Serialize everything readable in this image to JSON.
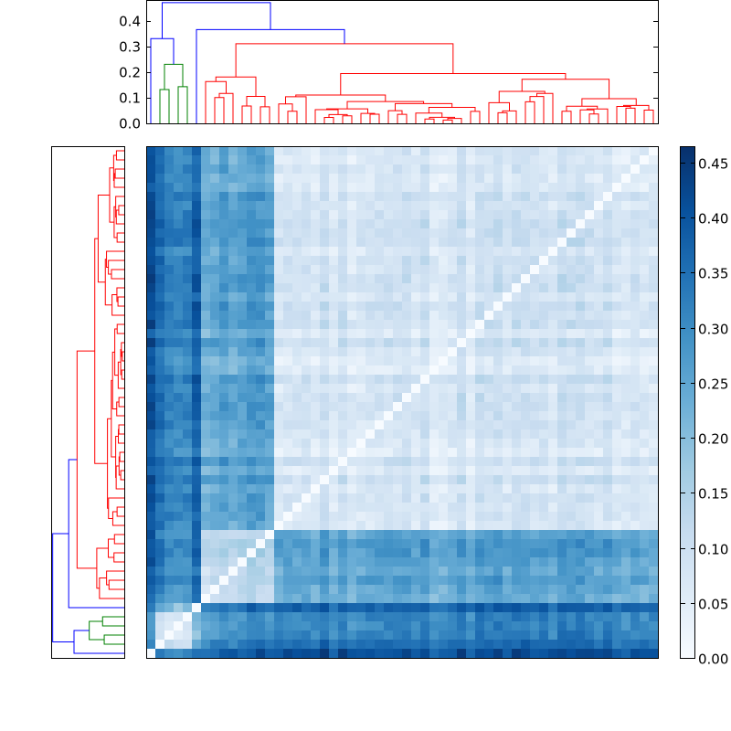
{
  "chart_data": [
    {
      "type": "dendrogram",
      "orientation": "top",
      "title": "",
      "xlabel": "",
      "ylabel": "",
      "ylim": [
        0,
        0.48
      ],
      "yticks": [
        0.0,
        0.1,
        0.2,
        0.3,
        0.4
      ],
      "ytick_labels": [
        "0.0",
        "0.1",
        "0.2",
        "0.3",
        "0.4"
      ],
      "leaf_count": 56,
      "link_colors": [
        "#0000ff",
        "#008000",
        "#ff0000"
      ],
      "root_height": 0.47,
      "cluster_heights": [
        0.47,
        0.365,
        0.33,
        0.31,
        0.27,
        0.23
      ]
    },
    {
      "type": "dendrogram",
      "orientation": "left",
      "title": "",
      "leaf_count": 56,
      "link_colors": [
        "#0000ff",
        "#008000",
        "#ff0000"
      ]
    },
    {
      "type": "heatmap",
      "title": "",
      "xlabel": "",
      "ylabel": "",
      "size": 56,
      "colormap": "Blues",
      "diagonal_value": 0.0,
      "value_range": [
        0.0,
        0.465
      ],
      "colorbar": {
        "ticks": [
          0.0,
          0.05,
          0.1,
          0.15,
          0.2,
          0.25,
          0.3,
          0.35,
          0.4,
          0.45
        ],
        "tick_labels": [
          "0.00",
          "0.05",
          "0.10",
          "0.15",
          "0.20",
          "0.25",
          "0.30",
          "0.35",
          "0.40",
          "0.45"
        ],
        "vmin": 0.0,
        "vmax": 0.465
      }
    }
  ]
}
